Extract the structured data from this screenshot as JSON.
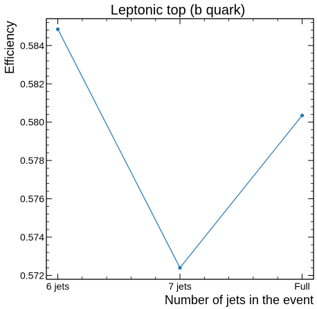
{
  "chart_data": {
    "type": "line",
    "title": "Leptonic top (b quark)",
    "xlabel": "Number of jets in the event",
    "ylabel": "Efficiency",
    "categories": [
      "6 jets",
      "7 jets",
      "Full"
    ],
    "series": [
      {
        "values": [
          0.58485,
          0.5724,
          0.58035
        ],
        "color": "#1f77b4"
      }
    ],
    "ylim": [
      0.5718,
      0.5854
    ],
    "yticks": [
      "0.572",
      "0.574",
      "0.576",
      "0.578",
      "0.580",
      "0.582",
      "0.584"
    ],
    "grid": false,
    "legend": "none"
  }
}
